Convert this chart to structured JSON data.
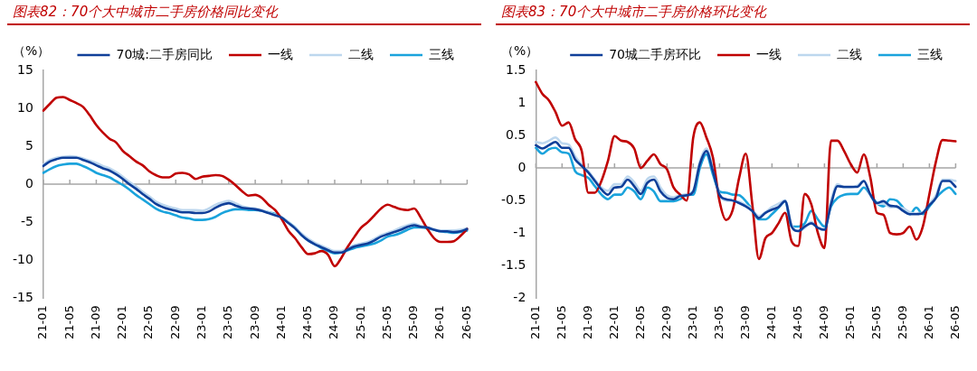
{
  "chart_data": [
    {
      "type": "line",
      "title": "图表82：70个大中城市二手房价格同比变化",
      "ylabel": "（%）",
      "legend": "top",
      "marker": "none",
      "line_style": "solid",
      "grid": false,
      "categories": [
        "21-01",
        null,
        null,
        null,
        "21-05",
        null,
        null,
        null,
        "21-09",
        null,
        null,
        null,
        "22-01",
        null,
        null,
        null,
        "22-05",
        null,
        null,
        null,
        "22-09",
        null,
        null,
        null,
        "23-01",
        null,
        null,
        null,
        "23-05",
        null,
        null,
        null,
        "23-09",
        null,
        null,
        null,
        "24-01",
        null,
        null,
        null,
        "24-05",
        null,
        null,
        null,
        "24-09",
        null,
        null,
        null,
        "25-01",
        null,
        null,
        null,
        "25-05",
        null,
        null,
        null,
        "25-09",
        null,
        null,
        null,
        "26-01",
        null,
        null,
        null,
        "26-05"
      ],
      "ylim": [
        -15,
        15
      ],
      "yticks": [
        -15,
        -10,
        -5,
        0,
        5,
        10,
        15
      ],
      "ref_lines": [
        {
          "axis": "y",
          "value": 0,
          "color": "#a6a6a6"
        }
      ],
      "series": [
        {
          "name": "70城:二手房同比",
          "color": "#0f3f99",
          "values": [
            2.4,
            3.0,
            3.3,
            3.5,
            3.5,
            3.5,
            3.2,
            2.9,
            2.5,
            2.1,
            1.8,
            1.3,
            0.7,
            0,
            -0.6,
            -1.3,
            -1.9,
            -2.6,
            -3.0,
            -3.3,
            -3.5,
            -3.7,
            -3.7,
            -3.8,
            -3.8,
            -3.6,
            -3.1,
            -2.7,
            -2.5,
            -2.8,
            -3.1,
            -3.2,
            -3.3,
            -3.5,
            -3.8,
            -4.1,
            -4.4,
            -5.1,
            -5.8,
            -6.7,
            -7.4,
            -7.9,
            -8.3,
            -8.7,
            -9.0,
            -9.0,
            -8.6,
            -8.2,
            -8.0,
            -7.8,
            -7.4,
            -6.9,
            -6.6,
            -6.3,
            -6.0,
            -5.6,
            -5.4,
            -5.6,
            -5.7,
            -6.0,
            -6.2,
            -6.2,
            -6.3,
            -6.2,
            -5.9
          ]
        },
        {
          "name": "一线",
          "color": "#c00000",
          "values": [
            9.7,
            10.6,
            11.4,
            11.5,
            11.1,
            10.7,
            10.2,
            9.1,
            7.8,
            6.8,
            6.0,
            5.5,
            4.4,
            3.7,
            3.0,
            2.5,
            1.7,
            1.2,
            0.9,
            0.9,
            1.4,
            1.5,
            1.3,
            0.7,
            1.0,
            1.1,
            1.2,
            1.1,
            0.6,
            -0.1,
            -0.9,
            -1.5,
            -1.4,
            -1.8,
            -2.7,
            -3.4,
            -4.6,
            -6.1,
            -7.1,
            -8.3,
            -9.2,
            -9.1,
            -8.8,
            -9.3,
            -10.8,
            -9.7,
            -8.2,
            -6.9,
            -5.7,
            -5.0,
            -4.1,
            -3.2,
            -2.7,
            -3.0,
            -3.3,
            -3.4,
            -3.2,
            -4.4,
            -5.9,
            -7.1,
            -7.6,
            -7.6,
            -7.5,
            -6.8,
            -5.9
          ]
        },
        {
          "name": "二线",
          "color": "#bdd7ee",
          "values": [
            2.6,
            3.2,
            3.5,
            3.6,
            3.7,
            3.6,
            3.4,
            3.1,
            2.8,
            2.4,
            2.1,
            1.6,
            1.0,
            0.3,
            -0.3,
            -1.0,
            -1.6,
            -2.3,
            -2.7,
            -3.0,
            -3.2,
            -3.4,
            -3.4,
            -3.4,
            -3.5,
            -3.2,
            -2.7,
            -2.4,
            -2.2,
            -2.5,
            -2.9,
            -3.1,
            -3.2,
            -3.4,
            -3.7,
            -4.0,
            -4.3,
            -5.0,
            -5.7,
            -6.5,
            -7.2,
            -7.7,
            -8.1,
            -8.5,
            -8.8,
            -8.8,
            -8.4,
            -8.0,
            -7.8,
            -7.6,
            -7.2,
            -6.7,
            -6.4,
            -6.1,
            -5.7,
            -5.4,
            -5.2,
            -5.5,
            -5.7,
            -5.9,
            -6.1,
            -6.1,
            -6.1,
            -6.0,
            -5.8
          ]
        },
        {
          "name": "三线",
          "color": "#1aa3dc",
          "values": [
            1.5,
            2.0,
            2.4,
            2.6,
            2.7,
            2.7,
            2.4,
            2.0,
            1.5,
            1.2,
            0.9,
            0.4,
            -0.1,
            -0.7,
            -1.4,
            -2.0,
            -2.6,
            -3.2,
            -3.6,
            -3.8,
            -4.1,
            -4.4,
            -4.5,
            -4.7,
            -4.7,
            -4.6,
            -4.3,
            -3.8,
            -3.5,
            -3.3,
            -3.3,
            -3.4,
            -3.4,
            -3.5,
            -3.7,
            -3.9,
            -4.4,
            -5.0,
            -5.7,
            -6.7,
            -7.4,
            -7.9,
            -8.4,
            -8.8,
            -9.1,
            -9.0,
            -8.7,
            -8.4,
            -8.2,
            -8.0,
            -7.8,
            -7.4,
            -6.9,
            -6.7,
            -6.4,
            -6.0,
            -5.7,
            -5.7,
            -5.8,
            -6.0,
            -6.2,
            -6.3,
            -6.4,
            -6.3,
            -6.1
          ]
        }
      ]
    },
    {
      "type": "line",
      "title": "图表83：70个大中城市二手房价格环比变化",
      "ylabel": "（%）",
      "legend": "top",
      "marker": "none",
      "line_style": "solid",
      "grid": false,
      "categories": [
        "21-01",
        null,
        null,
        null,
        "21-05",
        null,
        null,
        null,
        "21-09",
        null,
        null,
        null,
        "22-01",
        null,
        null,
        null,
        "22-05",
        null,
        null,
        null,
        "22-09",
        null,
        null,
        null,
        "23-01",
        null,
        null,
        null,
        "23-05",
        null,
        null,
        null,
        "23-09",
        null,
        null,
        null,
        "24-01",
        null,
        null,
        null,
        "24-05",
        null,
        null,
        null,
        "24-09",
        null,
        null,
        null,
        "25-01",
        null,
        null,
        null,
        "25-05",
        null,
        null,
        null,
        "25-09",
        null,
        null,
        null,
        "26-01",
        null,
        null,
        null,
        "26-05"
      ],
      "ylim": [
        -2,
        1.5
      ],
      "yticks": [
        -2,
        -1.5,
        -1,
        -0.5,
        0,
        0.5,
        1,
        1.5
      ],
      "ref_lines": [
        {
          "axis": "y",
          "value": 0,
          "color": "#a6a6a6"
        }
      ],
      "series": [
        {
          "name": "70城二手房环比",
          "color": "#0f3f99",
          "values": [
            0.35,
            0.3,
            0.35,
            0.4,
            0.31,
            0.31,
            0.13,
            0.03,
            -0.07,
            -0.2,
            -0.33,
            -0.41,
            -0.3,
            -0.29,
            -0.18,
            -0.28,
            -0.4,
            -0.23,
            -0.18,
            -0.36,
            -0.46,
            -0.48,
            -0.43,
            -0.42,
            -0.36,
            0.06,
            0.26,
            -0.05,
            -0.41,
            -0.48,
            -0.5,
            -0.54,
            -0.59,
            -0.66,
            -0.77,
            -0.69,
            -0.64,
            -0.6,
            -0.51,
            -0.9,
            -0.97,
            -0.9,
            -0.85,
            -0.92,
            -0.95,
            -0.56,
            -0.28,
            -0.29,
            -0.29,
            -0.29,
            -0.2,
            -0.41,
            -0.54,
            -0.51,
            -0.58,
            -0.59,
            -0.66,
            -0.71,
            -0.71,
            -0.69,
            -0.57,
            -0.46,
            -0.2,
            -0.2,
            -0.29
          ]
        },
        {
          "name": "一线",
          "color": "#c00000",
          "values": [
            1.32,
            1.14,
            1.04,
            0.86,
            0.65,
            0.7,
            0.44,
            0.26,
            -0.38,
            -0.38,
            -0.2,
            0.11,
            0.49,
            0.42,
            0.4,
            0.3,
            0.0,
            0.11,
            0.21,
            0.06,
            -0.02,
            -0.3,
            -0.41,
            -0.5,
            0.47,
            0.7,
            0.47,
            0.16,
            -0.51,
            -0.8,
            -0.65,
            -0.15,
            0.22,
            -0.56,
            -1.4,
            -1.08,
            -1.0,
            -0.85,
            -0.69,
            -1.13,
            -1.2,
            -0.4,
            -0.56,
            -1.0,
            -1.23,
            0.42,
            0.42,
            0.26,
            0.06,
            -0.07,
            0.21,
            -0.15,
            -0.69,
            -0.72,
            -1.0,
            -1.02,
            -1.0,
            -0.9,
            -1.1,
            -0.9,
            -0.4,
            0.1,
            0.43,
            0.42,
            0.41
          ]
        },
        {
          "name": "二线",
          "color": "#bdd7ee",
          "values": [
            0.4,
            0.38,
            0.42,
            0.47,
            0.38,
            0.36,
            0.18,
            0.05,
            -0.05,
            -0.18,
            -0.3,
            -0.35,
            -0.25,
            -0.25,
            -0.13,
            -0.22,
            -0.35,
            -0.17,
            -0.13,
            -0.3,
            -0.42,
            -0.45,
            -0.42,
            -0.4,
            -0.35,
            0.1,
            0.3,
            -0.02,
            -0.4,
            -0.5,
            -0.5,
            -0.52,
            -0.57,
            -0.64,
            -0.74,
            -0.68,
            -0.6,
            -0.55,
            -0.5,
            -0.88,
            -0.97,
            -0.92,
            -0.83,
            -0.92,
            -0.95,
            -0.5,
            -0.25,
            -0.3,
            -0.3,
            -0.27,
            -0.2,
            -0.42,
            -0.55,
            -0.55,
            -0.6,
            -0.6,
            -0.62,
            -0.68,
            -0.7,
            -0.68,
            -0.55,
            -0.42,
            -0.18,
            -0.18,
            -0.2
          ]
        },
        {
          "name": "三线",
          "color": "#1aa3dc",
          "values": [
            0.31,
            0.22,
            0.29,
            0.31,
            0.24,
            0.22,
            -0.05,
            -0.11,
            -0.15,
            -0.28,
            -0.41,
            -0.48,
            -0.41,
            -0.41,
            -0.3,
            -0.36,
            -0.48,
            -0.3,
            -0.36,
            -0.51,
            -0.51,
            -0.51,
            -0.48,
            -0.41,
            -0.41,
            0.0,
            0.21,
            -0.1,
            -0.36,
            -0.38,
            -0.41,
            -0.42,
            -0.51,
            -0.64,
            -0.79,
            -0.79,
            -0.71,
            -0.61,
            -0.51,
            -0.9,
            -0.9,
            -0.85,
            -0.66,
            -0.79,
            -0.9,
            -0.59,
            -0.46,
            -0.41,
            -0.4,
            -0.4,
            -0.3,
            -0.41,
            -0.54,
            -0.59,
            -0.48,
            -0.5,
            -0.61,
            -0.71,
            -0.61,
            -0.71,
            -0.59,
            -0.46,
            -0.36,
            -0.3,
            -0.4
          ]
        }
      ]
    }
  ]
}
